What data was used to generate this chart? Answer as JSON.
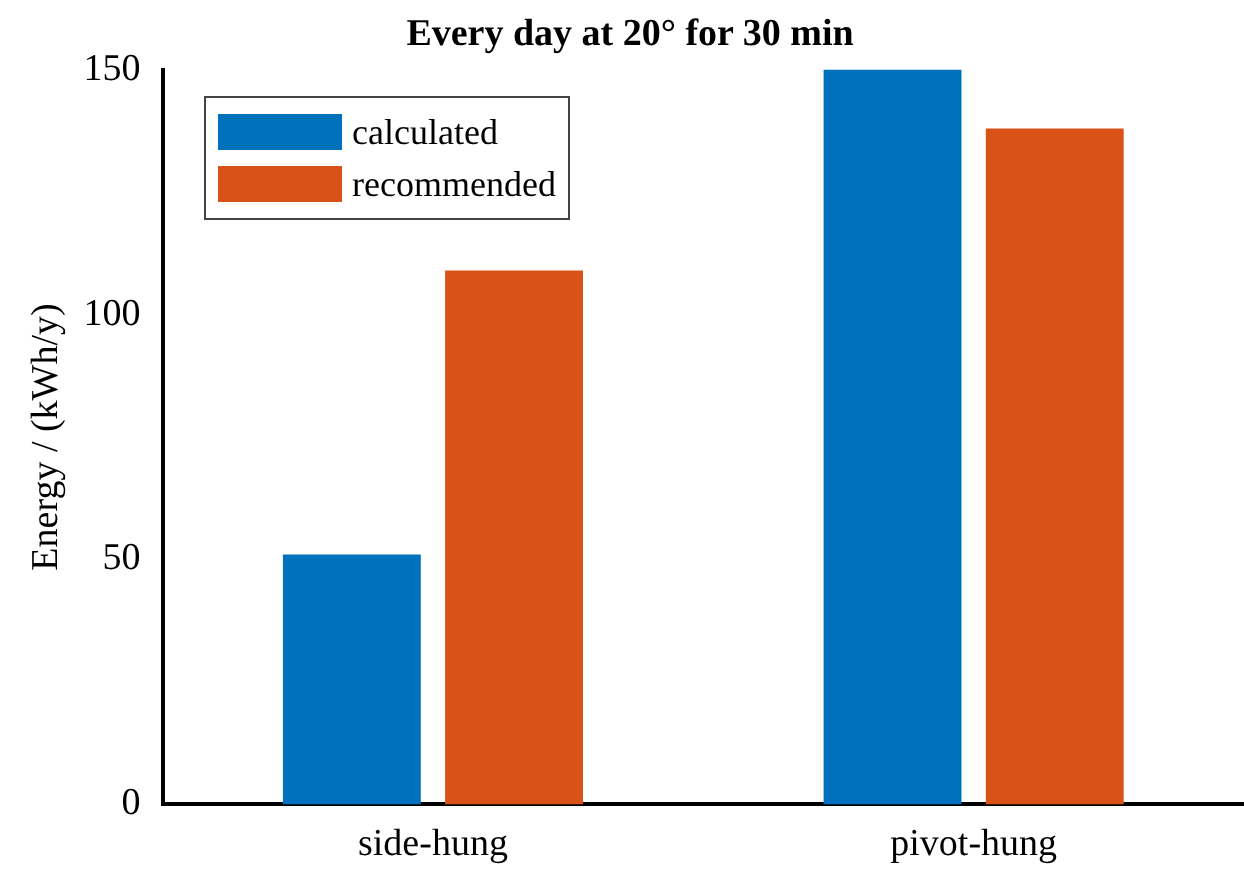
{
  "chart_data": {
    "type": "bar",
    "title": "Every day at 20° for 30 min",
    "ylabel": "Energy / (kWh/y)",
    "categories": [
      "side-hung",
      "pivot-hung"
    ],
    "series": [
      {
        "name": "calculated",
        "color": "#0072bd",
        "values": [
          51,
          150
        ]
      },
      {
        "name": "recommended",
        "color": "#d95319",
        "values": [
          109,
          138
        ]
      }
    ],
    "ylim": [
      0,
      150
    ],
    "yticks": [
      0,
      50,
      100,
      150
    ],
    "grid": false,
    "legend": "top left"
  }
}
